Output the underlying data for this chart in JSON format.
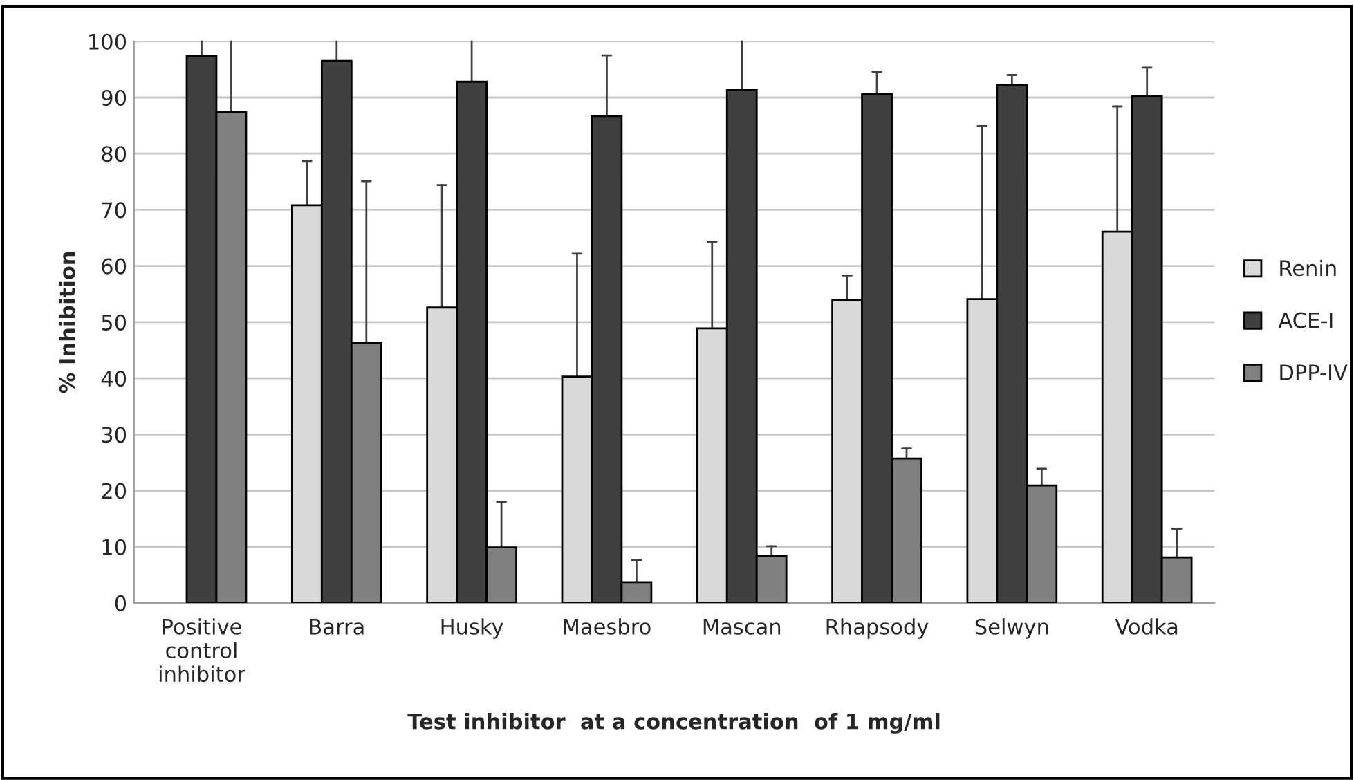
{
  "chart_data": {
    "type": "bar",
    "xlabel": "Test inhibitor  at a concentration  of 1 mg/ml",
    "ylabel": "% Inhibition",
    "categories": [
      "Positive\ncontrol\ninhibitor",
      "Barra",
      "Husky",
      "Maesbro",
      "Mascan",
      "Rhapsody",
      "Selwyn",
      "Vodka"
    ],
    "series": [
      {
        "name": "Renin",
        "color": "#d9d9d9",
        "values": [
          null,
          70.8,
          52.6,
          40.3,
          48.9,
          53.9,
          54.1,
          66.1
        ],
        "errors": [
          null,
          [
            70.8,
            78.7
          ],
          [
            52.6,
            74.4
          ],
          [
            40.3,
            62.2
          ],
          [
            48.9,
            64.3
          ],
          [
            53.9,
            58.3
          ],
          [
            54.1,
            84.9
          ],
          [
            66.1,
            88.4
          ]
        ]
      },
      {
        "name": "ACE-I",
        "color": "#404040",
        "values": [
          97.4,
          96.5,
          92.8,
          86.7,
          91.3,
          90.6,
          92.2,
          90.2
        ],
        "errors": [
          [
            97.4,
            100
          ],
          [
            96.5,
            100
          ],
          [
            92.8,
            100
          ],
          [
            86.7,
            97.5
          ],
          [
            91.3,
            100
          ],
          [
            90.6,
            94.6
          ],
          [
            92.2,
            94.0
          ],
          [
            90.2,
            95.3
          ]
        ]
      },
      {
        "name": "DPP-IV",
        "color": "#808080",
        "values": [
          87.4,
          46.3,
          9.9,
          3.7,
          8.4,
          25.7,
          20.9,
          8.1
        ],
        "errors": [
          [
            87.4,
            100
          ],
          [
            46.3,
            75.1
          ],
          [
            9.9,
            18.0
          ],
          [
            3.7,
            7.6
          ],
          [
            8.4,
            10.1
          ],
          [
            25.7,
            27.5
          ],
          [
            20.9,
            23.9
          ],
          [
            8.1,
            13.2
          ]
        ]
      }
    ],
    "ylim": [
      0,
      100
    ],
    "yticks": [
      0,
      10,
      20,
      30,
      40,
      50,
      60,
      70,
      80,
      90,
      100
    ],
    "grid": "y",
    "legend": "right"
  }
}
